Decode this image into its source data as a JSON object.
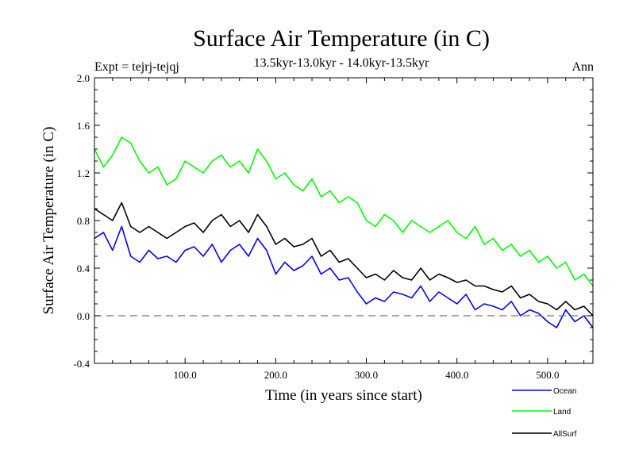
{
  "chart_data": {
    "type": "line",
    "title": "Surface Air Temperature (in C)",
    "expt_label": "Expt = tejrj-tejqj",
    "subtitle": "13.5kyr-13.0kyr - 14.0kyr-13.5kyr",
    "season_label": "Ann",
    "xlabel": "Time (in years since start)",
    "ylabel": "Surface Air Temperature (in C)",
    "xlim": [
      0,
      550
    ],
    "ylim": [
      -0.4,
      2.0
    ],
    "x_ticks": [
      100,
      200,
      300,
      400,
      500
    ],
    "x_tick_labels": [
      "100.0",
      "200.0",
      "300.0",
      "400.0",
      "500.0"
    ],
    "y_ticks": [
      -0.4,
      0.0,
      0.4,
      0.8,
      1.2,
      1.6,
      2.0
    ],
    "y_tick_labels": [
      "-0.4",
      "0.0",
      "0.4",
      "0.8",
      "1.2",
      "1.6",
      "2.0"
    ],
    "reference_line": 0.0,
    "x": [
      0,
      10,
      20,
      30,
      40,
      50,
      60,
      70,
      80,
      90,
      100,
      110,
      120,
      130,
      140,
      150,
      160,
      170,
      180,
      190,
      200,
      210,
      220,
      230,
      240,
      250,
      260,
      270,
      280,
      290,
      300,
      310,
      320,
      330,
      340,
      350,
      360,
      370,
      380,
      390,
      400,
      410,
      420,
      430,
      440,
      450,
      460,
      470,
      480,
      490,
      500,
      510,
      520,
      530,
      540,
      550
    ],
    "series": [
      {
        "name": "Ocean",
        "color": "#0000ff",
        "values": [
          0.65,
          0.7,
          0.55,
          0.75,
          0.5,
          0.45,
          0.55,
          0.48,
          0.5,
          0.45,
          0.55,
          0.58,
          0.5,
          0.6,
          0.45,
          0.55,
          0.6,
          0.5,
          0.65,
          0.55,
          0.35,
          0.45,
          0.38,
          0.42,
          0.5,
          0.35,
          0.4,
          0.3,
          0.32,
          0.2,
          0.1,
          0.15,
          0.12,
          0.2,
          0.18,
          0.15,
          0.25,
          0.12,
          0.2,
          0.15,
          0.1,
          0.18,
          0.05,
          0.1,
          0.08,
          0.05,
          0.12,
          0.0,
          0.05,
          0.02,
          -0.05,
          -0.1,
          0.05,
          -0.05,
          0.0,
          -0.1
        ]
      },
      {
        "name": "Land",
        "color": "#00ff00",
        "values": [
          1.4,
          1.25,
          1.35,
          1.5,
          1.45,
          1.3,
          1.2,
          1.25,
          1.1,
          1.15,
          1.3,
          1.25,
          1.2,
          1.3,
          1.35,
          1.25,
          1.3,
          1.2,
          1.4,
          1.3,
          1.15,
          1.2,
          1.1,
          1.05,
          1.15,
          1.0,
          1.05,
          0.95,
          1.0,
          0.95,
          0.8,
          0.75,
          0.85,
          0.8,
          0.7,
          0.8,
          0.75,
          0.7,
          0.75,
          0.8,
          0.7,
          0.65,
          0.75,
          0.6,
          0.65,
          0.55,
          0.6,
          0.5,
          0.55,
          0.45,
          0.5,
          0.4,
          0.45,
          0.3,
          0.35,
          0.25
        ]
      },
      {
        "name": "AllSurf",
        "color": "#000000",
        "values": [
          0.9,
          0.85,
          0.8,
          0.95,
          0.75,
          0.7,
          0.75,
          0.7,
          0.65,
          0.7,
          0.75,
          0.78,
          0.7,
          0.8,
          0.85,
          0.75,
          0.8,
          0.7,
          0.85,
          0.75,
          0.6,
          0.65,
          0.58,
          0.6,
          0.65,
          0.5,
          0.55,
          0.45,
          0.48,
          0.4,
          0.32,
          0.35,
          0.3,
          0.38,
          0.32,
          0.3,
          0.4,
          0.3,
          0.35,
          0.32,
          0.28,
          0.3,
          0.25,
          0.25,
          0.22,
          0.2,
          0.25,
          0.15,
          0.18,
          0.12,
          0.1,
          0.05,
          0.12,
          0.05,
          0.08,
          0.0
        ]
      }
    ],
    "legend_position": "bottom-right"
  }
}
